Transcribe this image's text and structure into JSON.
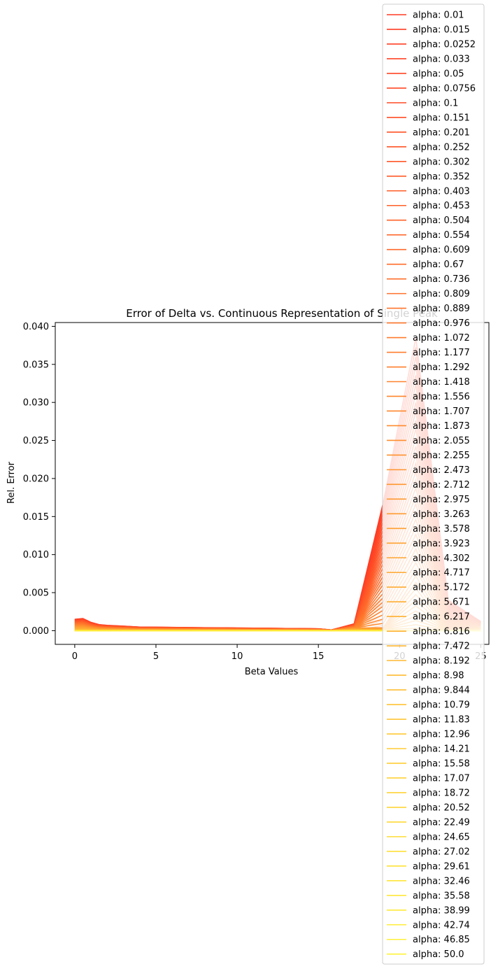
{
  "chart_data": {
    "type": "line",
    "title": "Error of Delta vs. Continuous Representation of Single Peak",
    "xlabel": "Beta Values",
    "ylabel": "Rel. Error",
    "xlim": [
      -1.2,
      25.5
    ],
    "ylim": [
      -0.0018,
      0.0405
    ],
    "xticks": [
      0,
      5,
      10,
      15,
      20,
      25
    ],
    "yticks": [
      0.0,
      0.005,
      0.01,
      0.015,
      0.02,
      0.025,
      0.03,
      0.035,
      0.04
    ],
    "ytick_labels": [
      "0.000",
      "0.005",
      "0.010",
      "0.015",
      "0.020",
      "0.025",
      "0.030",
      "0.035",
      "0.040"
    ],
    "grid": false,
    "legend_position": "right",
    "color_start": "#ff3a24",
    "color_end": "#fff33a",
    "band_color": "#fde0d2",
    "x": [
      0,
      0.5,
      1,
      1.5,
      2,
      3,
      4,
      5,
      6,
      7,
      8,
      9,
      10,
      11,
      12,
      13,
      14,
      15,
      15.8,
      17.2,
      19,
      21,
      23,
      25
    ],
    "series": [
      {
        "name": "alpha: 0.01"
      },
      {
        "name": "alpha: 0.015"
      },
      {
        "name": "alpha: 0.0252"
      },
      {
        "name": "alpha: 0.033"
      },
      {
        "name": "alpha: 0.05"
      },
      {
        "name": "alpha: 0.0756"
      },
      {
        "name": "alpha: 0.1"
      },
      {
        "name": "alpha: 0.151"
      },
      {
        "name": "alpha: 0.201"
      },
      {
        "name": "alpha: 0.252"
      },
      {
        "name": "alpha: 0.302"
      },
      {
        "name": "alpha: 0.352"
      },
      {
        "name": "alpha: 0.403"
      },
      {
        "name": "alpha: 0.453"
      },
      {
        "name": "alpha: 0.504"
      },
      {
        "name": "alpha: 0.554"
      },
      {
        "name": "alpha: 0.609"
      },
      {
        "name": "alpha: 0.67"
      },
      {
        "name": "alpha: 0.736"
      },
      {
        "name": "alpha: 0.809"
      },
      {
        "name": "alpha: 0.889"
      },
      {
        "name": "alpha: 0.976"
      },
      {
        "name": "alpha: 1.072"
      },
      {
        "name": "alpha: 1.177"
      },
      {
        "name": "alpha: 1.292"
      },
      {
        "name": "alpha: 1.418"
      },
      {
        "name": "alpha: 1.556"
      },
      {
        "name": "alpha: 1.707"
      },
      {
        "name": "alpha: 1.873"
      },
      {
        "name": "alpha: 2.055"
      },
      {
        "name": "alpha: 2.255"
      },
      {
        "name": "alpha: 2.473"
      },
      {
        "name": "alpha: 2.712"
      },
      {
        "name": "alpha: 2.975"
      },
      {
        "name": "alpha: 3.263"
      },
      {
        "name": "alpha: 3.578"
      },
      {
        "name": "alpha: 3.923"
      },
      {
        "name": "alpha: 4.302"
      },
      {
        "name": "alpha: 4.717"
      },
      {
        "name": "alpha: 5.172"
      },
      {
        "name": "alpha: 5.671"
      },
      {
        "name": "alpha: 6.217"
      },
      {
        "name": "alpha: 6.816"
      },
      {
        "name": "alpha: 7.472"
      },
      {
        "name": "alpha: 8.192"
      },
      {
        "name": "alpha: 8.98"
      },
      {
        "name": "alpha: 9.844"
      },
      {
        "name": "alpha: 10.79"
      },
      {
        "name": "alpha: 11.83"
      },
      {
        "name": "alpha: 12.96"
      },
      {
        "name": "alpha: 14.21"
      },
      {
        "name": "alpha: 15.58"
      },
      {
        "name": "alpha: 17.07"
      },
      {
        "name": "alpha: 18.72"
      },
      {
        "name": "alpha: 20.52"
      },
      {
        "name": "alpha: 22.49"
      },
      {
        "name": "alpha: 24.65"
      },
      {
        "name": "alpha: 27.02"
      },
      {
        "name": "alpha: 29.61"
      },
      {
        "name": "alpha: 32.46"
      },
      {
        "name": "alpha: 35.58"
      },
      {
        "name": "alpha: 38.99"
      },
      {
        "name": "alpha: 42.74"
      },
      {
        "name": "alpha: 46.85"
      },
      {
        "name": "alpha: 50.0"
      }
    ]
  }
}
